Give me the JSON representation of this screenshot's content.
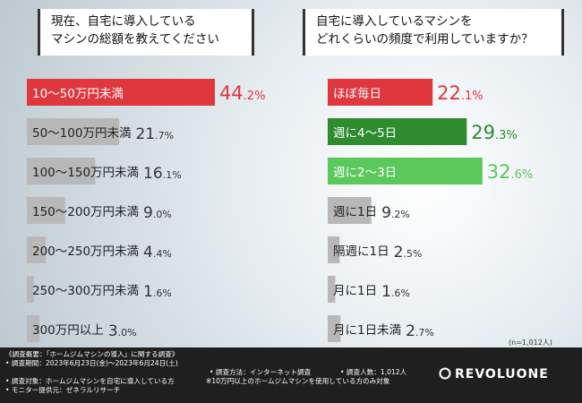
{
  "chart_data": [
    {
      "type": "bar",
      "orientation": "horizontal",
      "title": [
        "現在、自宅に導入している",
        "マシンの総額を教えてください"
      ],
      "categories": [
        "10〜50万円未満",
        "50〜100万円未満",
        "100〜150万円未満",
        "150〜200万円未満",
        "200〜250万円未満",
        "250〜300万円未満",
        "300万円以上"
      ],
      "values": [
        44.2,
        21.7,
        16.1,
        9.0,
        4.4,
        1.6,
        3.0
      ],
      "value_labels": [
        [
          "44",
          ".2",
          "%"
        ],
        [
          "21",
          ".7",
          "%"
        ],
        [
          "16",
          ".1",
          "%"
        ],
        [
          "9",
          ".0",
          "%"
        ],
        [
          "4",
          ".4",
          "%"
        ],
        [
          "1",
          ".6",
          "%"
        ],
        [
          "3",
          ".0",
          "%"
        ]
      ],
      "unit": "%",
      "colors": [
        "#e0363e",
        "#b8b8b8",
        "#b8b8b8",
        "#b8b8b8",
        "#b8b8b8",
        "#b8b8b8",
        "#b8b8b8"
      ]
    },
    {
      "type": "bar",
      "orientation": "horizontal",
      "title": [
        "自宅に導入しているマシンを",
        "どれくらいの頻度で利用していますか？"
      ],
      "categories": [
        "ほぼ毎日",
        "週に4〜5日",
        "週に2〜3日",
        "週に1日",
        "隔週に1日",
        "月に1日",
        "月に1日未満"
      ],
      "values": [
        22.1,
        29.3,
        32.6,
        9.2,
        2.5,
        1.6,
        2.7
      ],
      "value_labels": [
        [
          "22",
          ".1",
          "%"
        ],
        [
          "29",
          ".3",
          "%"
        ],
        [
          "32",
          ".6",
          "%"
        ],
        [
          "9",
          ".2",
          "%"
        ],
        [
          "2",
          ".5",
          "%"
        ],
        [
          "1",
          ".6",
          "%"
        ],
        [
          "2",
          ".7",
          "%"
        ]
      ],
      "unit": "%",
      "colors": [
        "#e0363e",
        "#2e8b2e",
        "#5ac85a",
        "#b8b8b8",
        "#b8b8b8",
        "#b8b8b8",
        "#b8b8b8"
      ]
    }
  ],
  "sample_size": "(n=1,012人)",
  "footer": {
    "lines": [
      "《調査概要：「ホームジムマシンの導入」に関する調査》",
      "• 調査期間：2023年6月23日(金)〜2023年6月24日(土)",
      "• 調査方法：インターネット調査",
      "• 調査人数：1,012人",
      "• 調査対象：ホームジムマシンを自宅に導入している方",
      "※10万円以上のホームジムマシンを使用している方のみ対象",
      "• モニター提供元：ゼネラルリサーチ"
    ],
    "logo": "REVOLUONE"
  }
}
